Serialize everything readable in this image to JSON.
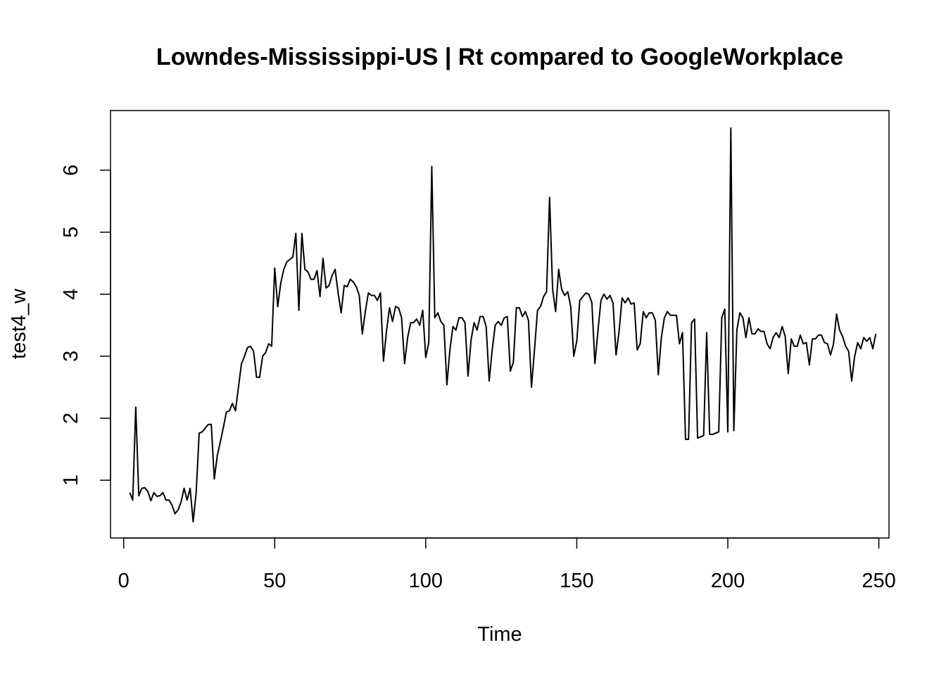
{
  "chart_data": {
    "type": "line",
    "title": "Lowndes-Mississippi-US | Rt compared to GoogleWorkplace",
    "xlabel": "Time",
    "ylabel": "test4_w",
    "xlim": [
      1,
      248
    ],
    "ylim": [
      0.33,
      6.7
    ],
    "xticks": [
      0,
      50,
      100,
      150,
      200,
      250
    ],
    "yticks": [
      1,
      2,
      3,
      4,
      5,
      6
    ],
    "grid": false,
    "legend": "none",
    "line_color": "#000000",
    "series": [
      {
        "x_start": 2,
        "values": [
          0.8,
          0.68,
          2.18,
          0.75,
          0.87,
          0.88,
          0.82,
          0.67,
          0.8,
          0.74,
          0.75,
          0.8,
          0.68,
          0.68,
          0.6,
          0.46,
          0.52,
          0.65,
          0.87,
          0.68,
          0.87,
          0.33,
          0.8,
          1.76,
          1.78,
          1.84,
          1.9,
          1.9,
          1.02,
          1.4,
          1.62,
          1.85,
          2.1,
          2.12,
          2.24,
          2.12,
          2.5,
          2.88,
          3.0,
          3.14,
          3.16,
          3.08,
          2.66,
          2.66,
          3.0,
          3.06,
          3.2,
          3.16,
          4.42,
          3.8,
          4.18,
          4.4,
          4.52,
          4.56,
          4.6,
          4.98,
          3.74,
          4.98,
          4.4,
          4.36,
          4.24,
          4.24,
          4.38,
          3.96,
          4.58,
          4.1,
          4.14,
          4.3,
          4.4,
          4.02,
          3.7,
          4.14,
          4.12,
          4.24,
          4.2,
          4.12,
          3.98,
          3.36,
          3.72,
          4.02,
          3.98,
          3.98,
          3.9,
          4.02,
          2.92,
          3.4,
          3.78,
          3.56,
          3.8,
          3.78,
          3.62,
          2.88,
          3.3,
          3.54,
          3.54,
          3.6,
          3.5,
          3.74,
          2.98,
          3.22,
          6.06,
          3.62,
          3.7,
          3.56,
          3.5,
          2.54,
          3.1,
          3.48,
          3.42,
          3.62,
          3.62,
          3.54,
          2.68,
          3.26,
          3.54,
          3.42,
          3.64,
          3.64,
          3.48,
          2.6,
          3.1,
          3.5,
          3.56,
          3.5,
          3.62,
          3.64,
          2.76,
          2.9,
          3.78,
          3.78,
          3.64,
          3.72,
          3.58,
          2.5,
          3.1,
          3.74,
          3.8,
          3.96,
          4.04,
          5.56,
          4.08,
          3.72,
          4.4,
          4.08,
          3.98,
          4.04,
          3.8,
          3.0,
          3.24,
          3.9,
          3.96,
          4.02,
          4.0,
          3.86,
          2.88,
          3.4,
          3.9,
          4.0,
          3.92,
          3.98,
          3.86,
          3.02,
          3.4,
          3.94,
          3.86,
          3.94,
          3.84,
          3.86,
          3.1,
          3.2,
          3.72,
          3.62,
          3.7,
          3.7,
          3.58,
          2.7,
          3.3,
          3.62,
          3.72,
          3.66,
          3.66,
          3.66,
          3.2,
          3.38,
          1.66,
          1.66,
          3.54,
          3.6,
          1.68,
          1.7,
          1.72,
          3.38,
          1.74,
          1.74,
          1.76,
          1.78,
          3.62,
          3.76,
          1.78,
          6.68,
          1.8,
          3.42,
          3.7,
          3.62,
          3.3,
          3.62,
          3.36,
          3.36,
          3.44,
          3.4,
          3.4,
          3.2,
          3.12,
          3.3,
          3.38,
          3.3,
          3.48,
          3.32,
          2.72,
          3.28,
          3.16,
          3.16,
          3.34,
          3.2,
          3.22,
          2.86,
          3.28,
          3.28,
          3.34,
          3.34,
          3.22,
          3.2,
          3.02,
          3.2,
          3.68,
          3.42,
          3.32,
          3.16,
          3.08,
          2.6,
          3.0,
          3.22,
          3.12,
          3.3,
          3.24,
          3.3,
          3.12,
          3.36
        ]
      }
    ]
  }
}
